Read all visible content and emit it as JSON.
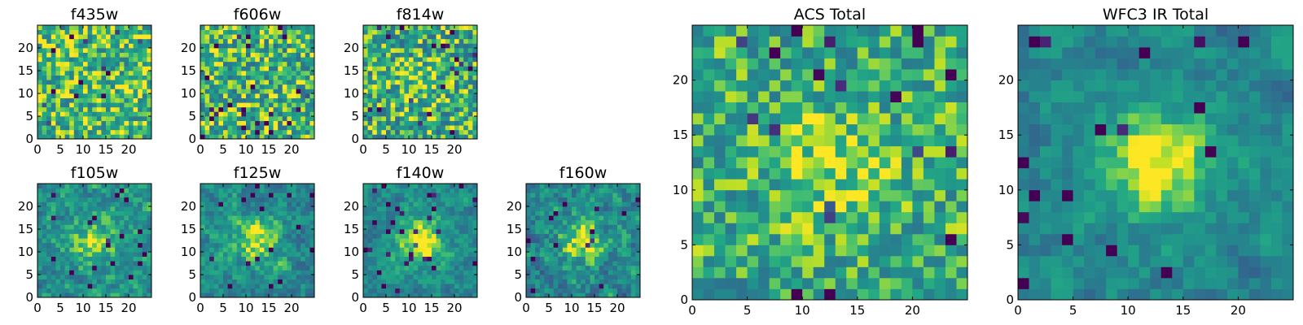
{
  "chart_data": [
    {
      "type": "heatmap",
      "title": "f435w",
      "xlim": [
        0,
        25
      ],
      "ylim": [
        0,
        25
      ],
      "xticks": [
        "0",
        "5",
        "10",
        "15",
        "20"
      ],
      "yticks": [
        "0",
        "5",
        "10",
        "15",
        "20"
      ],
      "colormap": "viridis",
      "seed": 11,
      "signal": 0.0,
      "noise": 0.55,
      "smooth": 0.0,
      "base": 0.78
    },
    {
      "type": "heatmap",
      "title": "f606w",
      "xlim": [
        0,
        25
      ],
      "ylim": [
        0,
        25
      ],
      "xticks": [
        "0",
        "5",
        "10",
        "15",
        "20"
      ],
      "yticks": [
        "0",
        "5",
        "10",
        "15",
        "20"
      ],
      "colormap": "viridis",
      "seed": 23,
      "signal": 0.0,
      "noise": 0.6,
      "smooth": 0.0,
      "base": 0.75
    },
    {
      "type": "heatmap",
      "title": "f814w",
      "xlim": [
        0,
        25
      ],
      "ylim": [
        0,
        25
      ],
      "xticks": [
        "0",
        "5",
        "10",
        "15",
        "20"
      ],
      "yticks": [
        "0",
        "5",
        "10",
        "15",
        "20"
      ],
      "colormap": "viridis",
      "seed": 37,
      "signal": 0.15,
      "noise": 0.6,
      "smooth": 0.0,
      "base": 0.72
    },
    {
      "type": "heatmap",
      "title": "f105w",
      "xlim": [
        0,
        25
      ],
      "ylim": [
        0,
        25
      ],
      "xticks": [
        "0",
        "5",
        "10",
        "15",
        "20"
      ],
      "yticks": [
        "0",
        "5",
        "10",
        "15",
        "20"
      ],
      "colormap": "viridis",
      "seed": 41,
      "signal": 0.3,
      "noise": 0.5,
      "smooth": 0.35,
      "base": 0.62
    },
    {
      "type": "heatmap",
      "title": "f125w",
      "xlim": [
        0,
        25
      ],
      "ylim": [
        0,
        25
      ],
      "xticks": [
        "0",
        "5",
        "10",
        "15",
        "20"
      ],
      "yticks": [
        "0",
        "5",
        "10",
        "15",
        "20"
      ],
      "colormap": "viridis",
      "seed": 53,
      "signal": 0.35,
      "noise": 0.5,
      "smooth": 0.4,
      "base": 0.6
    },
    {
      "type": "heatmap",
      "title": "f140w",
      "xlim": [
        0,
        25
      ],
      "ylim": [
        0,
        25
      ],
      "xticks": [
        "0",
        "5",
        "10",
        "15",
        "20"
      ],
      "yticks": [
        "0",
        "5",
        "10",
        "15",
        "20"
      ],
      "colormap": "viridis",
      "seed": 67,
      "signal": 0.45,
      "noise": 0.45,
      "smooth": 0.45,
      "base": 0.6
    },
    {
      "type": "heatmap",
      "title": "f160w",
      "xlim": [
        0,
        25
      ],
      "ylim": [
        0,
        25
      ],
      "xticks": [
        "0",
        "5",
        "10",
        "15",
        "20"
      ],
      "yticks": [
        "0",
        "5",
        "10",
        "15",
        "20"
      ],
      "colormap": "viridis",
      "seed": 79,
      "signal": 0.4,
      "noise": 0.55,
      "smooth": 0.35,
      "base": 0.58
    },
    {
      "type": "heatmap",
      "title": "ACS Total",
      "xlim": [
        0,
        25
      ],
      "ylim": [
        0,
        25
      ],
      "xticks": [
        "0",
        "5",
        "10",
        "15",
        "20"
      ],
      "yticks": [
        "0",
        "5",
        "10",
        "15",
        "20"
      ],
      "colormap": "viridis",
      "seed": 97,
      "signal": 0.2,
      "noise": 0.5,
      "smooth": 0.1,
      "base": 0.72
    },
    {
      "type": "heatmap",
      "title": "WFC3 IR Total",
      "xlim": [
        0,
        25
      ],
      "ylim": [
        0,
        25
      ],
      "xticks": [
        "0",
        "5",
        "10",
        "15",
        "20"
      ],
      "yticks": [
        "0",
        "5",
        "10",
        "15",
        "20"
      ],
      "colormap": "viridis",
      "seed": 113,
      "signal": 0.45,
      "noise": 0.42,
      "smooth": 0.5,
      "base": 0.58
    }
  ]
}
